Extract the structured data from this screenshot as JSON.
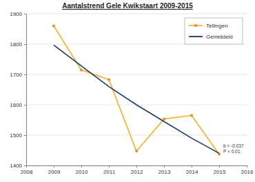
{
  "chart_data": {
    "type": "line",
    "title": "Aantalstrend Gele Kwikstaart 2009-2015",
    "x": [
      2009,
      2010,
      2011,
      2012,
      2013,
      2014,
      2015
    ],
    "series": [
      {
        "name": "Tellingen",
        "color": "#f0b63c",
        "marker": "circle",
        "line_style": "solid",
        "values": [
          1860,
          1715,
          1683,
          1447,
          1553,
          1565,
          1437
        ]
      },
      {
        "name": "Gemiddeld",
        "color": "#1f3864",
        "marker": "none",
        "line_style": "solid",
        "values": [
          1797,
          1728,
          1660,
          1600,
          1545,
          1490,
          1440
        ]
      }
    ],
    "xlim": [
      2008,
      2016
    ],
    "xticks": [
      2008,
      2009,
      2010,
      2011,
      2012,
      2013,
      2014,
      2015,
      2016
    ],
    "ylim": [
      1400,
      1900
    ],
    "yticks": [
      1400,
      1500,
      1600,
      1700,
      1800,
      1900
    ],
    "grid": true,
    "legend": "top-right",
    "annotations": [
      "b = -0.037",
      "P < 0.01"
    ]
  }
}
